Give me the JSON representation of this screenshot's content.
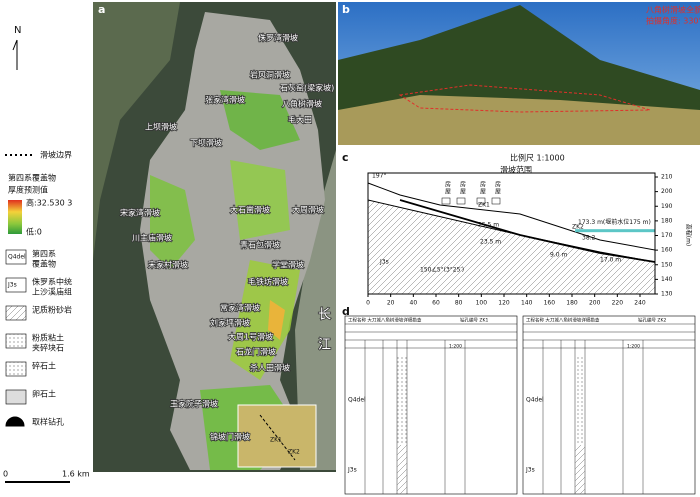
{
  "panel_a": {
    "label": "a",
    "north": "N",
    "legend": {
      "boundary": "滑坡边界",
      "thickness_title": [
        "第四系覆盖物",
        "厚度预测值"
      ],
      "high": "高:32.530 3",
      "low": "低:0",
      "items": [
        {
          "symbol": "Q4del",
          "label": [
            "第四系",
            "覆盖物"
          ]
        },
        {
          "symbol": "J3s",
          "label": [
            "侏罗系中统",
            "上沙溪庙组"
          ]
        },
        {
          "label": [
            "泥质粉砂岩"
          ]
        },
        {
          "label": [
            "粉质粘土",
            "夹碎块石"
          ]
        },
        {
          "label": [
            "碎石土"
          ]
        },
        {
          "label": [
            "卵石土"
          ]
        },
        {
          "label": [
            "取样钻孔"
          ]
        }
      ]
    },
    "scale": [
      "0",
      "1.6 km"
    ],
    "river": [
      "长",
      "江"
    ],
    "landslides": [
      "侏罗湾滑坡",
      "岩风洞滑坡",
      "石灰窑(梁家坡)",
      "八角树滑坡",
      "毛大田",
      "张家湾滑坡",
      "上坝滑坡",
      "下坝滑坡",
      "大石凿滑坡",
      "大周滑坡",
      "宋家湾滑坡",
      "川主庙滑坡",
      "宋家村滑坡",
      "青石包滑坡",
      "学堂滑坡",
      "毛铁坊滑坡",
      "常家湾滑坡",
      "刘家坪滑坡",
      "大周1号滑坡",
      "石龙门滑坡",
      "杀人田滑坡",
      "王家院子滑坡",
      "锦坡门滑坡"
    ],
    "boreholes": [
      "ZK1",
      "ZK2"
    ]
  },
  "panel_b": {
    "label": "b",
    "caption": [
      "八角树滑坡全貌",
      "拍摄角度: 330°"
    ]
  },
  "panel_c": {
    "label": "c",
    "scale": "比例尺 1:1000",
    "range": "滑坡范围",
    "crest": "197°",
    "houses": [
      "房",
      "屋",
      "房",
      "屋",
      "房",
      "屋",
      "房",
      "屋"
    ],
    "boreholes": [
      "ZK1",
      "ZK2"
    ],
    "water": "173.3 m(堰前水位175 m)",
    "dims": [
      "25.5 m",
      "23.5 m",
      "38.2",
      "9.0 m",
      "17.0 m"
    ],
    "dip": "150∠5°(3°25′)",
    "stratum": "J3s",
    "y_label": "高程(m)",
    "xticks": [
      0,
      20,
      40,
      60,
      80,
      100,
      120,
      140,
      160,
      180,
      200,
      220,
      240
    ],
    "yticks": [
      130,
      140,
      150,
      160,
      170,
      180,
      190,
      200,
      210
    ]
  },
  "panel_d": {
    "label": "d",
    "logs": [
      {
        "project": "工程名称 大刀城八角树滑坡详细勘查",
        "hole": "钻孔编号 ZK1",
        "scale": "1:200",
        "layers": [
          "Q4del",
          "J3s"
        ]
      },
      {
        "project": "工程名称 大刀城八角树滑坡详细勘查",
        "hole": "钻孔编号 ZK2",
        "scale": "1:200",
        "layers": [
          "Q4del",
          "J3s"
        ]
      }
    ]
  }
}
